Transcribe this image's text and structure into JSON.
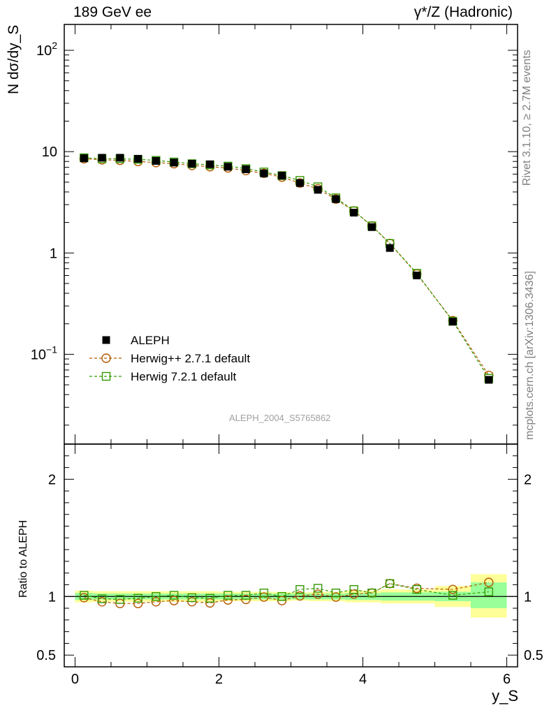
{
  "header": {
    "left": "189 GeV ee",
    "right": "γ*/Z (Hadronic)"
  },
  "side_text": {
    "rivet": "Rivet 3.1.10, ≥ 2.7M events",
    "mcplots": "mcplots.cern.ch [arXiv:1306.3436]"
  },
  "watermark": "ALEPH_2004_S5765862",
  "colors": {
    "data": "#000000",
    "herwigpp": "#b35900",
    "herwig7": "#339900",
    "band_inner": "#99ff99",
    "band_outer": "#ffff99"
  },
  "chart_data": [
    {
      "type": "scatter",
      "ylabel": "N dσ/dy_S",
      "yscale": "log",
      "xlim": [
        -0.15,
        6.15
      ],
      "ylim": [
        0.013,
        180
      ],
      "yticklabels": [
        "10^-1",
        "1",
        "10",
        "10^2"
      ],
      "legend_position": "middle-left",
      "x": [
        0.125,
        0.375,
        0.625,
        0.875,
        1.125,
        1.375,
        1.625,
        1.875,
        2.125,
        2.375,
        2.625,
        2.875,
        3.125,
        3.375,
        3.625,
        3.875,
        4.125,
        4.375,
        4.75,
        5.25,
        5.75
      ],
      "series": [
        {
          "name": "ALEPH",
          "marker": "filled-square",
          "values": [
            8.6,
            8.7,
            8.7,
            8.5,
            8.1,
            7.8,
            7.6,
            7.5,
            7.1,
            6.7,
            6.1,
            5.8,
            4.9,
            4.2,
            3.4,
            2.5,
            1.8,
            1.12,
            0.6,
            0.21,
            0.056
          ]
        },
        {
          "name": "Herwig++ 2.7.1 default",
          "marker": "open-circle",
          "values": [
            8.5,
            8.3,
            8.2,
            8.0,
            7.8,
            7.6,
            7.3,
            7.1,
            6.9,
            6.5,
            6.1,
            5.6,
            4.9,
            4.3,
            3.4,
            2.6,
            1.85,
            1.24,
            0.62,
            0.215,
            0.062
          ]
        },
        {
          "name": "Herwig 7.2.1 default",
          "marker": "open-square",
          "values": [
            8.7,
            8.5,
            8.5,
            8.4,
            8.2,
            7.9,
            7.6,
            7.4,
            7.2,
            6.8,
            6.3,
            5.8,
            5.2,
            4.5,
            3.5,
            2.6,
            1.85,
            1.24,
            0.63,
            0.212,
            0.058
          ]
        }
      ]
    },
    {
      "type": "scatter",
      "ylabel": "Ratio to ALEPH",
      "xlabel": "y_S",
      "xlim": [
        -0.15,
        6.15
      ],
      "ylim": [
        0.4,
        2.3
      ],
      "xticklabels": [
        "0",
        "2",
        "4",
        "6"
      ],
      "yticklabels": [
        "0.5",
        "1",
        "2"
      ],
      "x": [
        0.125,
        0.375,
        0.625,
        0.875,
        1.125,
        1.375,
        1.625,
        1.875,
        2.125,
        2.375,
        2.625,
        2.875,
        3.125,
        3.375,
        3.625,
        3.875,
        4.125,
        4.375,
        4.75,
        5.25,
        5.75
      ],
      "bands": {
        "edges": [
          0,
          0.25,
          0.5,
          0.75,
          1.0,
          1.25,
          1.5,
          1.75,
          2.0,
          2.25,
          2.5,
          2.75,
          3.0,
          3.25,
          3.5,
          3.75,
          4.0,
          4.25,
          4.5,
          5.0,
          5.5,
          6.0
        ],
        "inner": [
          [
            0.97,
            1.03
          ],
          [
            0.975,
            1.025
          ],
          [
            0.975,
            1.025
          ],
          [
            0.975,
            1.025
          ],
          [
            0.975,
            1.025
          ],
          [
            0.975,
            1.025
          ],
          [
            0.975,
            1.025
          ],
          [
            0.975,
            1.025
          ],
          [
            0.975,
            1.025
          ],
          [
            0.975,
            1.025
          ],
          [
            0.975,
            1.025
          ],
          [
            0.975,
            1.025
          ],
          [
            0.975,
            1.025
          ],
          [
            0.975,
            1.025
          ],
          [
            0.975,
            1.025
          ],
          [
            0.97,
            1.03
          ],
          [
            0.97,
            1.03
          ],
          [
            0.965,
            1.035
          ],
          [
            0.965,
            1.035
          ],
          [
            0.96,
            1.04
          ],
          [
            0.9,
            1.12
          ]
        ],
        "outer": [
          [
            0.95,
            1.05
          ],
          [
            0.955,
            1.045
          ],
          [
            0.955,
            1.045
          ],
          [
            0.955,
            1.045
          ],
          [
            0.955,
            1.045
          ],
          [
            0.955,
            1.045
          ],
          [
            0.955,
            1.045
          ],
          [
            0.955,
            1.045
          ],
          [
            0.96,
            1.04
          ],
          [
            0.96,
            1.04
          ],
          [
            0.96,
            1.04
          ],
          [
            0.96,
            1.04
          ],
          [
            0.965,
            1.035
          ],
          [
            0.96,
            1.04
          ],
          [
            0.96,
            1.04
          ],
          [
            0.95,
            1.05
          ],
          [
            0.95,
            1.05
          ],
          [
            0.94,
            1.06
          ],
          [
            0.94,
            1.06
          ],
          [
            0.91,
            1.09
          ],
          [
            0.82,
            1.19
          ]
        ]
      },
      "series": [
        {
          "name": "Herwig++ 2.7.1 default",
          "marker": "open-circle",
          "values": [
            0.99,
            0.955,
            0.94,
            0.94,
            0.955,
            0.965,
            0.955,
            0.945,
            0.97,
            0.975,
            0.995,
            0.965,
            1.005,
            1.02,
            0.995,
            1.02,
            1.03,
            1.11,
            1.07,
            1.06,
            1.12
          ]
        },
        {
          "name": "Herwig 7.2.1 default",
          "marker": "open-square",
          "values": [
            1.01,
            0.98,
            0.975,
            0.985,
            1.0,
            1.01,
            0.99,
            0.985,
            1.01,
            1.01,
            1.03,
            1.0,
            1.06,
            1.07,
            1.03,
            1.06,
            1.03,
            1.11,
            1.06,
            1.01,
            1.04
          ]
        }
      ]
    }
  ]
}
